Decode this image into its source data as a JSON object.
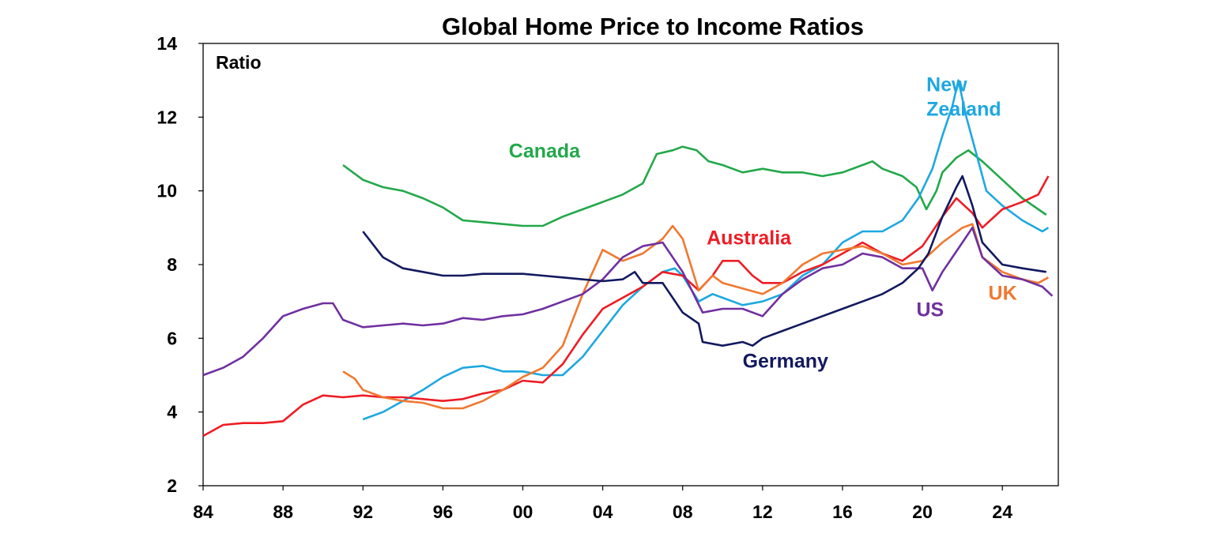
{
  "chart_data": {
    "type": "line",
    "title": "Global Home Price to Income Ratios",
    "ylabel": "Ratio",
    "xlabel": "",
    "xlim": [
      1984,
      2026.8
    ],
    "ylim": [
      2,
      14
    ],
    "yticks": [
      2,
      4,
      6,
      8,
      10,
      12,
      14
    ],
    "xticks": [
      1984,
      1988,
      1992,
      1996,
      2000,
      2004,
      2008,
      2012,
      2016,
      2020,
      2024
    ],
    "xtick_labels": [
      "84",
      "88",
      "92",
      "96",
      "00",
      "04",
      "08",
      "12",
      "16",
      "20",
      "24"
    ],
    "grid": false,
    "legend": "inline labels",
    "series": [
      {
        "name": "Canada",
        "color": "#22A84A",
        "label_pos": [
          1999.3,
          10.9
        ],
        "points": [
          [
            1991.0,
            10.7
          ],
          [
            1992,
            10.3
          ],
          [
            1993,
            10.1
          ],
          [
            1994,
            10.0
          ],
          [
            1995,
            9.8
          ],
          [
            1996,
            9.55
          ],
          [
            1997,
            9.2
          ],
          [
            1998,
            9.15
          ],
          [
            1999,
            9.1
          ],
          [
            2000,
            9.05
          ],
          [
            2001,
            9.05
          ],
          [
            2002,
            9.3
          ],
          [
            2003,
            9.5
          ],
          [
            2004,
            9.7
          ],
          [
            2005,
            9.9
          ],
          [
            2006,
            10.2
          ],
          [
            2006.7,
            11.0
          ],
          [
            2007.5,
            11.1
          ],
          [
            2008,
            11.2
          ],
          [
            2008.7,
            11.1
          ],
          [
            2009.3,
            10.8
          ],
          [
            2010,
            10.7
          ],
          [
            2011,
            10.5
          ],
          [
            2012,
            10.6
          ],
          [
            2013,
            10.5
          ],
          [
            2014,
            10.5
          ],
          [
            2015,
            10.4
          ],
          [
            2016,
            10.5
          ],
          [
            2017,
            10.7
          ],
          [
            2017.5,
            10.8
          ],
          [
            2018,
            10.6
          ],
          [
            2019,
            10.4
          ],
          [
            2019.7,
            10.1
          ],
          [
            2020.2,
            9.5
          ],
          [
            2020.7,
            10.0
          ],
          [
            2021,
            10.5
          ],
          [
            2021.7,
            10.9
          ],
          [
            2022.3,
            11.1
          ],
          [
            2023,
            10.8
          ],
          [
            2024,
            10.3
          ],
          [
            2025,
            9.8
          ],
          [
            2026.2,
            9.35
          ]
        ]
      },
      {
        "name": "New Zealand",
        "color": "#1EA8E0",
        "label_pos": [
          2020.2,
          12.7
        ],
        "points": [
          [
            1992.0,
            3.8
          ],
          [
            1993,
            4.0
          ],
          [
            1994,
            4.3
          ],
          [
            1995,
            4.6
          ],
          [
            1996,
            4.95
          ],
          [
            1997,
            5.2
          ],
          [
            1998,
            5.25
          ],
          [
            1999,
            5.1
          ],
          [
            2000,
            5.1
          ],
          [
            2001,
            5.0
          ],
          [
            2002,
            5.0
          ],
          [
            2003,
            5.5
          ],
          [
            2004,
            6.2
          ],
          [
            2005,
            6.9
          ],
          [
            2006,
            7.4
          ],
          [
            2007,
            7.8
          ],
          [
            2007.6,
            7.9
          ],
          [
            2008,
            7.7
          ],
          [
            2008.8,
            7.0
          ],
          [
            2009.5,
            7.2
          ],
          [
            2010,
            7.1
          ],
          [
            2011,
            6.9
          ],
          [
            2012,
            7.0
          ],
          [
            2013,
            7.2
          ],
          [
            2014,
            7.7
          ],
          [
            2015,
            8.0
          ],
          [
            2016,
            8.6
          ],
          [
            2017,
            8.9
          ],
          [
            2018,
            8.9
          ],
          [
            2019,
            9.2
          ],
          [
            2019.8,
            9.8
          ],
          [
            2020.5,
            10.6
          ],
          [
            2021,
            11.5
          ],
          [
            2021.5,
            12.3
          ],
          [
            2021.8,
            13.0
          ],
          [
            2022.2,
            12.0
          ],
          [
            2022.7,
            11.0
          ],
          [
            2023.2,
            10.0
          ],
          [
            2024,
            9.6
          ],
          [
            2025,
            9.2
          ],
          [
            2026,
            8.9
          ],
          [
            2026.3,
            9.0
          ]
        ]
      },
      {
        "name": "Australia",
        "color": "#EE1C25",
        "label_pos": [
          2009.2,
          8.55
        ],
        "points": [
          [
            1984.0,
            3.35
          ],
          [
            1985,
            3.65
          ],
          [
            1986,
            3.7
          ],
          [
            1987,
            3.7
          ],
          [
            1988,
            3.75
          ],
          [
            1989,
            4.2
          ],
          [
            1990,
            4.45
          ],
          [
            1991,
            4.4
          ],
          [
            1992,
            4.45
          ],
          [
            1993,
            4.4
          ],
          [
            1994,
            4.4
          ],
          [
            1995,
            4.35
          ],
          [
            1996,
            4.3
          ],
          [
            1997,
            4.35
          ],
          [
            1998,
            4.5
          ],
          [
            1999,
            4.6
          ],
          [
            2000,
            4.85
          ],
          [
            2001,
            4.8
          ],
          [
            2002,
            5.3
          ],
          [
            2003,
            6.1
          ],
          [
            2004,
            6.8
          ],
          [
            2005,
            7.1
          ],
          [
            2006,
            7.4
          ],
          [
            2007,
            7.8
          ],
          [
            2008,
            7.7
          ],
          [
            2008.8,
            7.3
          ],
          [
            2009.5,
            7.7
          ],
          [
            2010,
            8.1
          ],
          [
            2010.8,
            8.1
          ],
          [
            2011.5,
            7.7
          ],
          [
            2012,
            7.5
          ],
          [
            2013,
            7.5
          ],
          [
            2014,
            7.8
          ],
          [
            2015,
            8.0
          ],
          [
            2016,
            8.3
          ],
          [
            2017,
            8.6
          ],
          [
            2018,
            8.3
          ],
          [
            2019,
            8.1
          ],
          [
            2020,
            8.5
          ],
          [
            2021,
            9.3
          ],
          [
            2021.7,
            9.8
          ],
          [
            2022.5,
            9.4
          ],
          [
            2023,
            9.0
          ],
          [
            2024,
            9.5
          ],
          [
            2025,
            9.7
          ],
          [
            2025.8,
            9.9
          ],
          [
            2026.3,
            10.4
          ]
        ]
      },
      {
        "name": "UK",
        "color": "#F07830",
        "label_pos": [
          2023.3,
          7.05
        ],
        "points": [
          [
            1991.0,
            5.1
          ],
          [
            1991.6,
            4.9
          ],
          [
            1992,
            4.6
          ],
          [
            1993,
            4.4
          ],
          [
            1994,
            4.3
          ],
          [
            1995,
            4.25
          ],
          [
            1996,
            4.1
          ],
          [
            1997,
            4.1
          ],
          [
            1998,
            4.3
          ],
          [
            1999,
            4.6
          ],
          [
            2000,
            4.95
          ],
          [
            2001,
            5.2
          ],
          [
            2002,
            5.8
          ],
          [
            2003,
            7.2
          ],
          [
            2004,
            8.4
          ],
          [
            2005,
            8.1
          ],
          [
            2006,
            8.3
          ],
          [
            2007,
            8.7
          ],
          [
            2007.5,
            9.05
          ],
          [
            2008,
            8.7
          ],
          [
            2008.8,
            7.3
          ],
          [
            2009.5,
            7.7
          ],
          [
            2010,
            7.5
          ],
          [
            2011,
            7.35
          ],
          [
            2012,
            7.2
          ],
          [
            2013,
            7.5
          ],
          [
            2014,
            8.0
          ],
          [
            2015,
            8.3
          ],
          [
            2016,
            8.4
          ],
          [
            2017,
            8.5
          ],
          [
            2018,
            8.3
          ],
          [
            2019,
            8.0
          ],
          [
            2020,
            8.1
          ],
          [
            2021,
            8.6
          ],
          [
            2022,
            9.0
          ],
          [
            2022.5,
            9.1
          ],
          [
            2023,
            8.2
          ],
          [
            2024,
            7.8
          ],
          [
            2025,
            7.6
          ],
          [
            2025.8,
            7.5
          ],
          [
            2026.3,
            7.65
          ]
        ]
      },
      {
        "name": "US",
        "color": "#7030A0",
        "label_pos": [
          2019.7,
          6.6
        ],
        "points": [
          [
            1984.0,
            5.0
          ],
          [
            1985,
            5.2
          ],
          [
            1986,
            5.5
          ],
          [
            1987,
            6.0
          ],
          [
            1988,
            6.6
          ],
          [
            1989,
            6.8
          ],
          [
            1990,
            6.95
          ],
          [
            1990.5,
            6.95
          ],
          [
            1991,
            6.5
          ],
          [
            1992,
            6.3
          ],
          [
            1993,
            6.35
          ],
          [
            1994,
            6.4
          ],
          [
            1995,
            6.35
          ],
          [
            1996,
            6.4
          ],
          [
            1997,
            6.55
          ],
          [
            1998,
            6.5
          ],
          [
            1999,
            6.6
          ],
          [
            2000,
            6.65
          ],
          [
            2001,
            6.8
          ],
          [
            2002,
            7.0
          ],
          [
            2003,
            7.2
          ],
          [
            2004,
            7.6
          ],
          [
            2005,
            8.2
          ],
          [
            2006,
            8.5
          ],
          [
            2007,
            8.6
          ],
          [
            2008,
            7.8
          ],
          [
            2009,
            6.7
          ],
          [
            2010,
            6.8
          ],
          [
            2011,
            6.8
          ],
          [
            2012,
            6.6
          ],
          [
            2013,
            7.2
          ],
          [
            2014,
            7.6
          ],
          [
            2015,
            7.9
          ],
          [
            2016,
            8.0
          ],
          [
            2017,
            8.3
          ],
          [
            2018,
            8.2
          ],
          [
            2019,
            7.9
          ],
          [
            2020,
            7.9
          ],
          [
            2020.5,
            7.3
          ],
          [
            2021,
            7.8
          ],
          [
            2022,
            8.6
          ],
          [
            2022.5,
            9.0
          ],
          [
            2023,
            8.2
          ],
          [
            2024,
            7.7
          ],
          [
            2025,
            7.6
          ],
          [
            2026,
            7.4
          ],
          [
            2026.5,
            7.15
          ]
        ]
      },
      {
        "name": "Germany",
        "color": "#12195E",
        "label_pos": [
          2011.0,
          5.2
        ],
        "points": [
          [
            1992.0,
            8.9
          ],
          [
            1993,
            8.2
          ],
          [
            1994,
            7.9
          ],
          [
            1995,
            7.8
          ],
          [
            1996,
            7.7
          ],
          [
            1997,
            7.7
          ],
          [
            1998,
            7.75
          ],
          [
            1999,
            7.75
          ],
          [
            2000,
            7.75
          ],
          [
            2001,
            7.7
          ],
          [
            2002,
            7.65
          ],
          [
            2003,
            7.6
          ],
          [
            2004,
            7.55
          ],
          [
            2005,
            7.6
          ],
          [
            2005.6,
            7.8
          ],
          [
            2006,
            7.5
          ],
          [
            2007,
            7.5
          ],
          [
            2007.5,
            7.1
          ],
          [
            2008,
            6.7
          ],
          [
            2008.8,
            6.4
          ],
          [
            2009,
            5.9
          ],
          [
            2010,
            5.8
          ],
          [
            2011,
            5.9
          ],
          [
            2011.5,
            5.8
          ],
          [
            2012,
            6.0
          ],
          [
            2013,
            6.2
          ],
          [
            2014,
            6.4
          ],
          [
            2015,
            6.6
          ],
          [
            2016,
            6.8
          ],
          [
            2017,
            7.0
          ],
          [
            2018,
            7.2
          ],
          [
            2019,
            7.5
          ],
          [
            2019.8,
            7.9
          ],
          [
            2020.3,
            8.3
          ],
          [
            2021,
            9.3
          ],
          [
            2021.7,
            10.1
          ],
          [
            2022,
            10.4
          ],
          [
            2022.5,
            9.6
          ],
          [
            2023,
            8.6
          ],
          [
            2024,
            8.0
          ],
          [
            2025,
            7.9
          ],
          [
            2026.2,
            7.8
          ]
        ]
      }
    ]
  }
}
